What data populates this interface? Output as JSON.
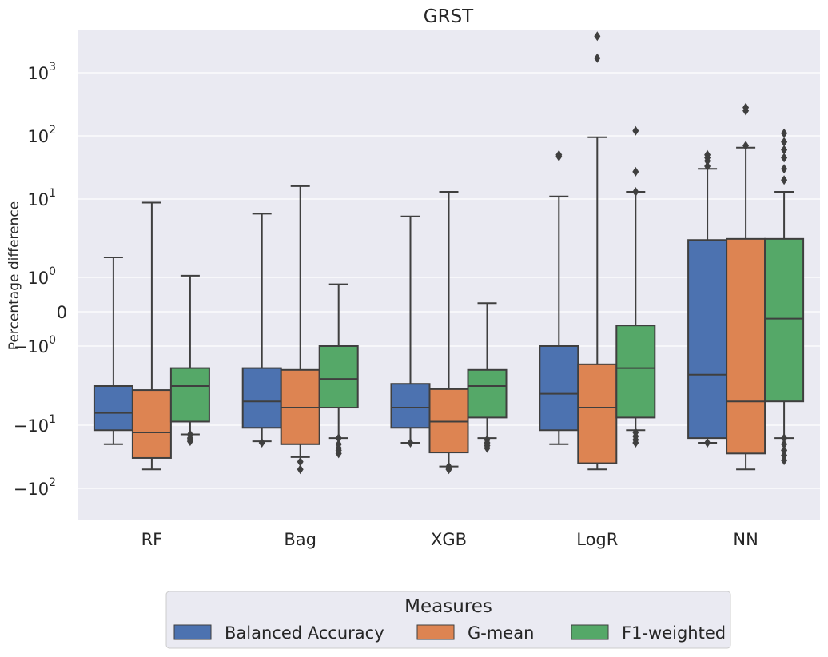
{
  "chart_data": {
    "type": "box",
    "title": "GRST",
    "xlabel": "",
    "ylabel": "Percentage difference",
    "y_scale": "symlog",
    "y_linthresh": 1,
    "y_ticks": [
      {
        "value": 1000,
        "base": "10",
        "exp": "3"
      },
      {
        "value": 100,
        "base": "10",
        "exp": "2"
      },
      {
        "value": 10,
        "base": "10",
        "exp": "1"
      },
      {
        "value": 1,
        "base": "10",
        "exp": "0"
      },
      {
        "value": 0,
        "base": "0",
        "exp": ""
      },
      {
        "value": -1,
        "base": "−10",
        "exp": "0"
      },
      {
        "value": -10,
        "base": "−10",
        "exp": "1"
      },
      {
        "value": -100,
        "base": "−10",
        "exp": "2"
      }
    ],
    "grid": true,
    "categories": [
      "RF",
      "Bag",
      "XGB",
      "LogR",
      "NN"
    ],
    "legend": {
      "title": "Measures",
      "position": "bottom-center",
      "entries": [
        "Balanced Accuracy",
        "G-mean",
        "F1-weighted"
      ]
    },
    "series": [
      {
        "name": "Balanced Accuracy",
        "color": "#4c72b0",
        "boxes": [
          {
            "whislo": -20,
            "q1": -12,
            "med": -7,
            "q3": -3.2,
            "whishi": 1.8,
            "fliers": []
          },
          {
            "whislo": -18,
            "q1": -11,
            "med": -5,
            "q3": -1.9,
            "whishi": 6.5,
            "fliers": [
              -19
            ]
          },
          {
            "whislo": -19,
            "q1": -11,
            "med": -6,
            "q3": -3,
            "whishi": 6,
            "fliers": [
              -19
            ]
          },
          {
            "whislo": -20,
            "q1": -12,
            "med": -4,
            "q3": -1,
            "whishi": 11,
            "fliers": [
              47,
              50
            ]
          },
          {
            "whislo": -19,
            "q1": -16,
            "med": -2.3,
            "q3": 3,
            "whishi": 30,
            "fliers": [
              -19,
              33,
              40,
              45,
              50
            ]
          }
        ]
      },
      {
        "name": "G-mean",
        "color": "#dd8452",
        "boxes": [
          {
            "whislo": -50,
            "q1": -33,
            "med": -13,
            "q3": -3.6,
            "whishi": 9,
            "fliers": []
          },
          {
            "whislo": -32,
            "q1": -20,
            "med": -6,
            "q3": -2,
            "whishi": 16,
            "fliers": [
              -38,
              -50
            ]
          },
          {
            "whislo": -45,
            "q1": -27,
            "med": -9,
            "q3": -3.5,
            "whishi": 13,
            "fliers": [
              -45,
              -48,
              -50
            ]
          },
          {
            "whislo": -50,
            "q1": -40,
            "med": -6,
            "q3": -1.7,
            "whishi": 95,
            "fliers": [
              1700,
              3800
            ]
          },
          {
            "whislo": -50,
            "q1": -28,
            "med": -5,
            "q3": 3.1,
            "whishi": 65,
            "fliers": [
              70,
              250,
              280
            ]
          }
        ]
      },
      {
        "name": "F1-weighted",
        "color": "#55a868",
        "boxes": [
          {
            "whislo": -14,
            "q1": -9,
            "med": -3.2,
            "q3": -1.9,
            "whishi": 1.05,
            "fliers": [
              -14,
              -16,
              -17,
              -18
            ]
          },
          {
            "whislo": -16,
            "q1": -6,
            "med": -2.6,
            "q3": -1,
            "whishi": 0.8,
            "fliers": [
              -16,
              -20,
              -23,
              -25,
              -28
            ]
          },
          {
            "whislo": -16,
            "q1": -8,
            "med": -3.2,
            "q3": -2,
            "whishi": 0.25,
            "fliers": [
              -17,
              -19,
              -21,
              -23
            ]
          },
          {
            "whislo": -12,
            "q1": -8,
            "med": -1.9,
            "q3": -0.4,
            "whishi": 13,
            "fliers": [
              -13,
              -15,
              -17,
              -19,
              13,
              27,
              120
            ]
          },
          {
            "whislo": -16,
            "q1": -5,
            "med": -0.2,
            "q3": 3.1,
            "whishi": 13,
            "fliers": [
              -16,
              -20,
              -25,
              -30,
              -36,
              20,
              30,
              45,
              60,
              80,
              110
            ]
          }
        ]
      }
    ]
  }
}
